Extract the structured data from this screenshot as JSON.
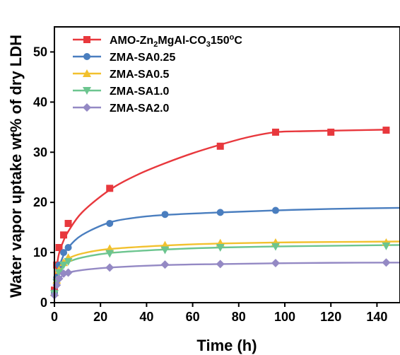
{
  "chart_data": {
    "type": "scatter",
    "xlabel": "Time (h)",
    "ylabel": "Water vapor uptake wt% of dry LDH",
    "xlim": [
      0,
      150
    ],
    "ylim": [
      0,
      55
    ],
    "xticks": [
      0,
      20,
      40,
      60,
      80,
      100,
      120,
      140
    ],
    "yticks": [
      0,
      10,
      20,
      30,
      40,
      50
    ],
    "legend_position": "top-left",
    "grid": false,
    "series": [
      {
        "name": "AMO-Zn2MgAl-CO3150°C",
        "name_parts": {
          "pre": "AMO-Zn",
          "sub1": "2",
          "mid": "MgAl-CO",
          "sub2": "3",
          "num": "150",
          "sup": "o",
          "post": "C"
        },
        "color": "#e8383d",
        "marker": "square",
        "x": [
          0,
          1,
          2,
          4,
          6,
          24,
          48,
          72,
          96,
          120,
          144
        ],
        "y": [
          2.5,
          7.5,
          11.0,
          13.5,
          15.8,
          22.8,
          null,
          31.2,
          34.0,
          34.0,
          34.4
        ],
        "fit": [
          [
            0,
            2.5
          ],
          [
            1,
            7.0
          ],
          [
            2,
            9.8
          ],
          [
            4,
            12.4
          ],
          [
            6,
            14.2
          ],
          [
            12,
            18.0
          ],
          [
            24,
            22.5
          ],
          [
            36,
            25.5
          ],
          [
            48,
            27.8
          ],
          [
            60,
            29.8
          ],
          [
            72,
            31.5
          ],
          [
            84,
            33.0
          ],
          [
            96,
            34.0
          ],
          [
            108,
            34.2
          ],
          [
            120,
            34.3
          ],
          [
            132,
            34.4
          ],
          [
            144,
            34.5
          ]
        ]
      },
      {
        "name": "ZMA-SA0.25",
        "color": "#4a7ebf",
        "marker": "circle",
        "x": [
          0,
          1,
          2,
          4,
          6,
          24,
          48,
          72,
          96
        ],
        "y": [
          2.0,
          5.0,
          7.5,
          10.0,
          11.0,
          15.8,
          17.6,
          18.0,
          18.4
        ],
        "fit": [
          [
            0,
            2.0
          ],
          [
            1,
            5.0
          ],
          [
            2,
            7.0
          ],
          [
            4,
            9.5
          ],
          [
            6,
            11.0
          ],
          [
            12,
            13.5
          ],
          [
            24,
            16.0
          ],
          [
            36,
            17.0
          ],
          [
            48,
            17.5
          ],
          [
            72,
            18.0
          ],
          [
            96,
            18.4
          ],
          [
            120,
            18.7
          ],
          [
            150,
            18.9
          ]
        ]
      },
      {
        "name": "ZMA-SA0.5",
        "color": "#f2c12e",
        "marker": "triangle-up",
        "x": [
          0,
          1,
          2,
          4,
          6,
          24,
          48,
          72,
          96,
          144
        ],
        "y": [
          2.0,
          4.5,
          6.5,
          8.0,
          9.0,
          10.8,
          11.5,
          11.9,
          12.0,
          12.0
        ],
        "fit": [
          [
            0,
            2.0
          ],
          [
            1,
            4.5
          ],
          [
            2,
            6.2
          ],
          [
            4,
            7.8
          ],
          [
            6,
            8.8
          ],
          [
            12,
            9.8
          ],
          [
            24,
            10.7
          ],
          [
            48,
            11.4
          ],
          [
            72,
            11.8
          ],
          [
            96,
            12.0
          ],
          [
            120,
            12.1
          ],
          [
            150,
            12.2
          ]
        ]
      },
      {
        "name": "ZMA-SA1.0",
        "color": "#6cc58f",
        "marker": "triangle-down",
        "x": [
          0,
          1,
          2,
          4,
          6,
          24,
          48,
          72,
          96,
          144
        ],
        "y": [
          1.8,
          4.0,
          6.0,
          7.5,
          8.2,
          9.8,
          10.5,
          11.0,
          11.2,
          11.3
        ],
        "fit": [
          [
            0,
            1.8
          ],
          [
            1,
            4.0
          ],
          [
            2,
            5.7
          ],
          [
            4,
            7.3
          ],
          [
            6,
            8.1
          ],
          [
            12,
            9.0
          ],
          [
            24,
            9.9
          ],
          [
            48,
            10.6
          ],
          [
            72,
            11.0
          ],
          [
            96,
            11.2
          ],
          [
            120,
            11.35
          ],
          [
            150,
            11.5
          ]
        ]
      },
      {
        "name": "ZMA-SA2.0",
        "color": "#9489c4",
        "marker": "diamond",
        "x": [
          0,
          1,
          2,
          4,
          6,
          24,
          48,
          72,
          96,
          144
        ],
        "y": [
          1.5,
          3.5,
          4.8,
          5.8,
          6.0,
          7.0,
          7.6,
          7.7,
          7.9,
          8.0
        ],
        "fit": [
          [
            0,
            1.5
          ],
          [
            1,
            3.4
          ],
          [
            2,
            4.6
          ],
          [
            4,
            5.6
          ],
          [
            6,
            6.0
          ],
          [
            12,
            6.5
          ],
          [
            24,
            7.0
          ],
          [
            48,
            7.5
          ],
          [
            72,
            7.7
          ],
          [
            96,
            7.85
          ],
          [
            120,
            7.95
          ],
          [
            150,
            8.0
          ]
        ]
      }
    ]
  }
}
